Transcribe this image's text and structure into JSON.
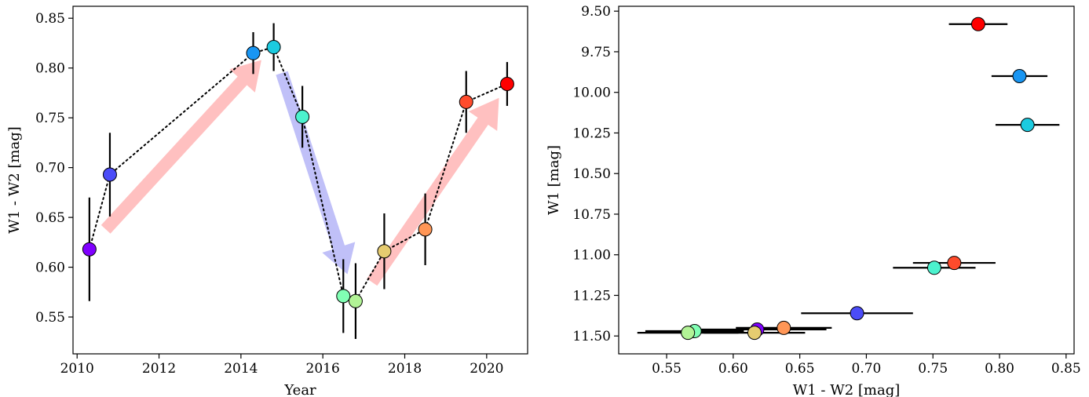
{
  "chart_data": [
    {
      "type": "scatter",
      "title": "",
      "xlabel": "Year",
      "ylabel": "W1 - W2 [mag]",
      "xlim": [
        2009.9,
        2021.0
      ],
      "ylim": [
        0.513,
        0.862
      ],
      "xticks": [
        2010,
        2012,
        2014,
        2016,
        2018,
        2020
      ],
      "xtick_labels": [
        "2010",
        "2012",
        "2014",
        "2016",
        "2018",
        "2020"
      ],
      "yticks": [
        0.55,
        0.6,
        0.65,
        0.7,
        0.75,
        0.8,
        0.85
      ],
      "ytick_labels": [
        "0.55",
        "0.60",
        "0.65",
        "0.70",
        "0.75",
        "0.80",
        "0.85"
      ],
      "connecting_line": "dotted",
      "grid": false,
      "points": [
        {
          "x": 2010.3,
          "y": 0.618,
          "yerr": 0.052,
          "color": "#8000ff"
        },
        {
          "x": 2010.8,
          "y": 0.693,
          "yerr": 0.042,
          "color": "#4b4cf8"
        },
        {
          "x": 2014.3,
          "y": 0.815,
          "yerr": 0.021,
          "color": "#1996f3"
        },
        {
          "x": 2014.8,
          "y": 0.821,
          "yerr": 0.024,
          "color": "#1ccbe0"
        },
        {
          "x": 2015.5,
          "y": 0.751,
          "yerr": 0.031,
          "color": "#4cf2ce"
        },
        {
          "x": 2016.5,
          "y": 0.571,
          "yerr": 0.037,
          "color": "#81ffb4"
        },
        {
          "x": 2016.8,
          "y": 0.566,
          "yerr": 0.038,
          "color": "#b2f396"
        },
        {
          "x": 2017.5,
          "y": 0.616,
          "yerr": 0.038,
          "color": "#e6cc70"
        },
        {
          "x": 2018.5,
          "y": 0.638,
          "yerr": 0.036,
          "color": "#ff9656"
        },
        {
          "x": 2019.5,
          "y": 0.766,
          "yerr": 0.031,
          "color": "#ff4b2c"
        },
        {
          "x": 2020.5,
          "y": 0.784,
          "yerr": 0.022,
          "color": "#ff0000"
        }
      ],
      "trend_arrows": [
        {
          "from": [
            2010.7,
            0.638
          ],
          "to": [
            2014.5,
            0.808
          ],
          "color": "#ffc0c0",
          "direction": "increasing"
        },
        {
          "from": [
            2015.0,
            0.795
          ],
          "to": [
            2016.6,
            0.593
          ],
          "color": "#c0c0f8",
          "direction": "decreasing"
        },
        {
          "from": [
            2017.2,
            0.585
          ],
          "to": [
            2020.3,
            0.77
          ],
          "color": "#ffc0c0",
          "direction": "increasing"
        }
      ]
    },
    {
      "type": "scatter",
      "title": "",
      "xlabel": "W1 - W2 [mag]",
      "ylabel": "W1 [mag]",
      "xlim": [
        0.514,
        0.856
      ],
      "ylim": [
        11.61,
        9.47
      ],
      "y_inverted": true,
      "xticks": [
        0.55,
        0.6,
        0.65,
        0.7,
        0.75,
        0.8,
        0.85
      ],
      "xtick_labels": [
        "0.55",
        "0.60",
        "0.65",
        "0.70",
        "0.75",
        "0.80",
        "0.85"
      ],
      "yticks": [
        9.5,
        9.75,
        10.0,
        10.25,
        10.5,
        10.75,
        11.0,
        11.25,
        11.5
      ],
      "ytick_labels": [
        "9.50",
        "9.75",
        "10.00",
        "10.25",
        "10.50",
        "10.75",
        "11.00",
        "11.25",
        "11.50"
      ],
      "grid": false,
      "points": [
        {
          "x": 0.618,
          "y": 11.46,
          "xerr": 0.052,
          "color": "#8000ff"
        },
        {
          "x": 0.693,
          "y": 11.36,
          "xerr": 0.042,
          "color": "#4b4cf8"
        },
        {
          "x": 0.815,
          "y": 9.9,
          "xerr": 0.021,
          "color": "#1996f3"
        },
        {
          "x": 0.821,
          "y": 10.2,
          "xerr": 0.024,
          "color": "#1ccbe0"
        },
        {
          "x": 0.751,
          "y": 11.08,
          "xerr": 0.031,
          "color": "#4cf2ce"
        },
        {
          "x": 0.571,
          "y": 11.47,
          "xerr": 0.037,
          "color": "#81ffb4"
        },
        {
          "x": 0.566,
          "y": 11.48,
          "xerr": 0.038,
          "color": "#b2f396"
        },
        {
          "x": 0.616,
          "y": 11.48,
          "xerr": 0.038,
          "color": "#e6cc70"
        },
        {
          "x": 0.638,
          "y": 11.45,
          "xerr": 0.036,
          "color": "#ff9656"
        },
        {
          "x": 0.766,
          "y": 11.05,
          "xerr": 0.031,
          "color": "#ff4b2c"
        },
        {
          "x": 0.784,
          "y": 9.58,
          "xerr": 0.022,
          "color": "#ff0000"
        }
      ]
    }
  ]
}
